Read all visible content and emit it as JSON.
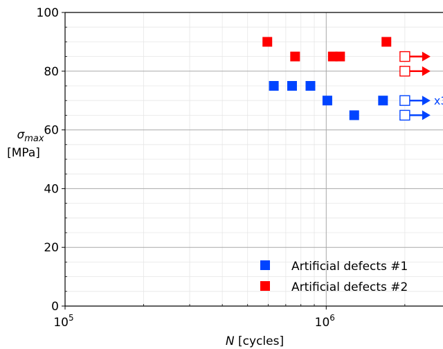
{
  "chart_data": {
    "type": "scatter",
    "title": "",
    "xlabel_symbol": "N",
    "xlabel_unit": "[cycles]",
    "ylabel_symbol": "σ",
    "ylabel_subscript": "max",
    "ylabel_unit": "[MPa]",
    "xscale": "log",
    "xlim": [
      100000,
      2800000
    ],
    "ylim": [
      0,
      100
    ],
    "grid": true,
    "legend_placement": "lower-right",
    "x_tick_labels": [
      {
        "value": 100000,
        "base": "10",
        "exp": "5"
      },
      {
        "value": 1000000,
        "base": "10",
        "exp": "6"
      }
    ],
    "y_ticks": [
      0,
      20,
      40,
      60,
      80,
      100
    ],
    "series": [
      {
        "name": "Artificial defects #1",
        "color": "#0044ff",
        "points": [
          [
            630000,
            75
          ],
          [
            740000,
            75
          ],
          [
            870000,
            75
          ],
          [
            1010000,
            70
          ],
          [
            1280000,
            65
          ],
          [
            1650000,
            70
          ]
        ],
        "runouts": [
          {
            "x": 2000000,
            "y": 70,
            "note": "x3"
          },
          {
            "x": 2000000,
            "y": 65,
            "note": ""
          }
        ]
      },
      {
        "name": "Artificial defects #2",
        "color": "#ff0000",
        "points": [
          [
            595000,
            90
          ],
          [
            760000,
            85
          ],
          [
            1060000,
            85
          ],
          [
            1130000,
            85
          ],
          [
            1700000,
            90
          ]
        ],
        "runouts": [
          {
            "x": 2000000,
            "y": 85,
            "note": ""
          },
          {
            "x": 2000000,
            "y": 80,
            "note": ""
          }
        ]
      }
    ]
  }
}
